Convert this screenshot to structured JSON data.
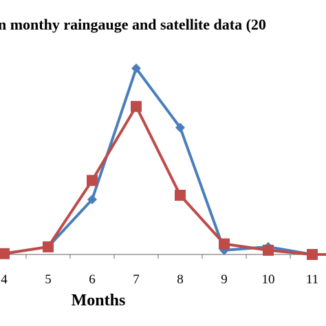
{
  "chart_data": {
    "type": "line",
    "title": "n  monthy raingauge and satellite data (20",
    "xlabel": "Months",
    "ylabel": "",
    "x": [
      "4",
      "5",
      "6",
      "7",
      "8",
      "9",
      "10",
      "11"
    ],
    "series": [
      {
        "color": "#4a7ebb",
        "marker": "diamond",
        "values": [
          2,
          18,
          130,
          440,
          300,
          10,
          18,
          0
        ]
      },
      {
        "color": "#be4b48",
        "marker": "square",
        "values": [
          2,
          18,
          175,
          350,
          140,
          25,
          10,
          0
        ]
      }
    ],
    "extra_series_tail": {
      "series_index": 1,
      "value": 0
    },
    "ylim": [
      0,
      470
    ],
    "grid": false,
    "legend": "none"
  }
}
